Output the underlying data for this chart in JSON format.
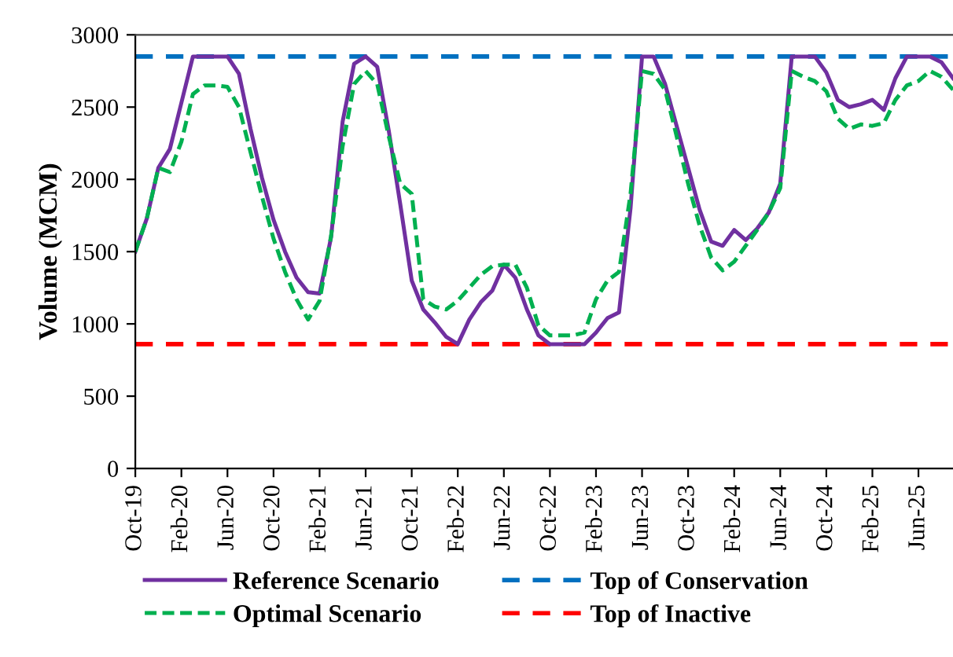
{
  "chart_data": {
    "type": "line",
    "ylabel": "Volume (MCM)",
    "categories": [
      "Oct-19",
      null,
      null,
      null,
      "Feb-20",
      null,
      null,
      null,
      "Jun-20",
      null,
      null,
      null,
      "Oct-20",
      null,
      null,
      null,
      "Feb-21",
      null,
      null,
      null,
      "Jun-21",
      null,
      null,
      null,
      "Oct-21",
      null,
      null,
      null,
      "Feb-22",
      null,
      null,
      null,
      "Jun-22",
      null,
      null,
      null,
      "Oct-22",
      null,
      null,
      null,
      "Feb-23",
      null,
      null,
      null,
      "Jun-23",
      null,
      null,
      null,
      "Oct-23",
      null,
      null,
      null,
      "Feb-24",
      null,
      null,
      null,
      "Jun-24",
      null,
      null,
      null,
      "Oct-24",
      null,
      null,
      null,
      "Feb-25",
      null,
      null,
      null,
      "Jun-25",
      null,
      null,
      null
    ],
    "series": [
      {
        "name": "Reference Scenario",
        "color": "#7030a0",
        "line_style": "solid",
        "values": [
          1500,
          1730,
          2080,
          2210,
          2530,
          2850,
          2850,
          2850,
          2850,
          2730,
          2350,
          2010,
          1720,
          1500,
          1320,
          1220,
          1210,
          1600,
          2400,
          2800,
          2850,
          2780,
          2340,
          1830,
          1300,
          1100,
          1010,
          910,
          860,
          1030,
          1150,
          1230,
          1410,
          1320,
          1100,
          920,
          860,
          860,
          860,
          860,
          940,
          1040,
          1080,
          1800,
          2850,
          2850,
          2660,
          2370,
          2080,
          1790,
          1570,
          1540,
          1650,
          1580,
          1660,
          1770,
          1970,
          2850,
          2850,
          2850,
          2740,
          2550,
          2500,
          2520,
          2550,
          2480,
          2700,
          2850,
          2850,
          2850,
          2810,
          2700
        ]
      },
      {
        "name": "Optimal Scenario",
        "color": "#00b050",
        "line_style": "dashed",
        "values": [
          1500,
          1730,
          2080,
          2050,
          2260,
          2590,
          2650,
          2650,
          2640,
          2500,
          2190,
          1880,
          1590,
          1360,
          1170,
          1030,
          1160,
          1610,
          2230,
          2660,
          2750,
          2660,
          2300,
          1970,
          1900,
          1170,
          1120,
          1100,
          1160,
          1250,
          1340,
          1400,
          1410,
          1410,
          1250,
          990,
          920,
          920,
          920,
          940,
          1170,
          1300,
          1360,
          1900,
          2750,
          2730,
          2620,
          2300,
          1970,
          1680,
          1460,
          1370,
          1430,
          1540,
          1650,
          1770,
          1940,
          2750,
          2710,
          2680,
          2610,
          2420,
          2350,
          2380,
          2370,
          2390,
          2550,
          2650,
          2680,
          2750,
          2710,
          2620
        ]
      }
    ],
    "ref_lines": [
      {
        "axis": "y",
        "value": 2850,
        "label": "Top of Conservation",
        "color": "#0070c0",
        "line_style": "dashed"
      },
      {
        "axis": "y",
        "value": 860,
        "label": "Top of Inactive",
        "color": "#ff0000",
        "line_style": "dashed"
      }
    ],
    "ylim": [
      0,
      3000
    ],
    "yticks": [
      0,
      500,
      1000,
      1500,
      2000,
      2500,
      3000
    ],
    "grid": false,
    "legend": "bottom"
  }
}
